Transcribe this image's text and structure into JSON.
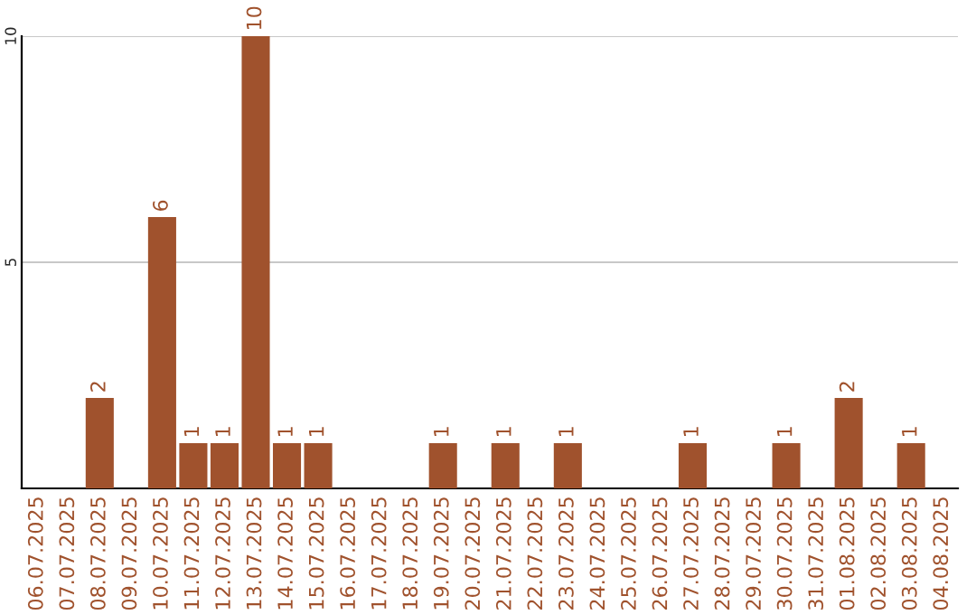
{
  "chart_data": {
    "type": "bar",
    "categories": [
      "06.07.2025",
      "07.07.2025",
      "08.07.2025",
      "09.07.2025",
      "10.07.2025",
      "11.07.2025",
      "12.07.2025",
      "13.07.2025",
      "14.07.2025",
      "15.07.2025",
      "16.07.2025",
      "17.07.2025",
      "18.07.2025",
      "19.07.2025",
      "20.07.2025",
      "21.07.2025",
      "22.07.2025",
      "23.07.2025",
      "24.07.2025",
      "25.07.2025",
      "26.07.2025",
      "27.07.2025",
      "28.07.2025",
      "29.07.2025",
      "30.07.2025",
      "31.07.2025",
      "01.08.2025",
      "02.08.2025",
      "03.08.2025",
      "04.08.2025"
    ],
    "values": [
      0,
      0,
      2,
      0,
      6,
      1,
      1,
      10,
      1,
      1,
      0,
      0,
      0,
      1,
      0,
      1,
      0,
      1,
      0,
      0,
      0,
      1,
      0,
      0,
      1,
      0,
      2,
      0,
      1,
      0
    ],
    "value_labels": [
      null,
      null,
      "2",
      null,
      "6",
      "1",
      "1",
      "10",
      "1",
      "1",
      null,
      null,
      null,
      "1",
      null,
      "1",
      null,
      "1",
      null,
      null,
      null,
      "1",
      null,
      null,
      "1",
      null,
      "2",
      null,
      "1",
      null
    ],
    "color": "#a0522d",
    "ylim": [
      0,
      10
    ],
    "yticks": [
      5,
      10
    ],
    "grid": "y"
  }
}
